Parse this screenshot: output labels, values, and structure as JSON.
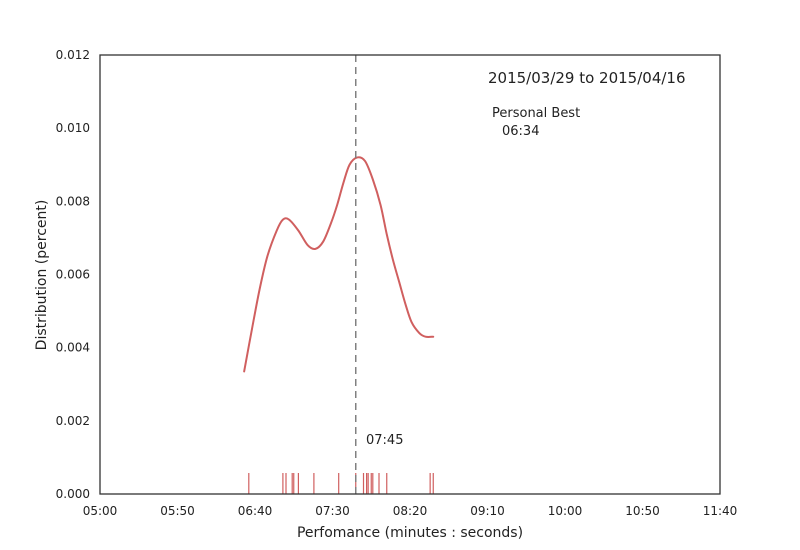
{
  "chart_data": {
    "type": "line",
    "title": "",
    "xlabel": "Perfomance (minutes : seconds)",
    "ylabel": "Distribution (percent)",
    "xlim": [
      300,
      700
    ],
    "ylim": [
      0,
      0.012
    ],
    "grid": false,
    "x_ticks": [
      {
        "value": 300,
        "label": "05:00"
      },
      {
        "value": 350,
        "label": "05:50"
      },
      {
        "value": 400,
        "label": "06:40"
      },
      {
        "value": 450,
        "label": "07:30"
      },
      {
        "value": 500,
        "label": "08:20"
      },
      {
        "value": 550,
        "label": "09:10"
      },
      {
        "value": 600,
        "label": "10:00"
      },
      {
        "value": 650,
        "label": "10:50"
      },
      {
        "value": 700,
        "label": "11:40"
      }
    ],
    "y_ticks": [
      {
        "value": 0,
        "label": "0.000"
      },
      {
        "value": 0.002,
        "label": "0.002"
      },
      {
        "value": 0.004,
        "label": "0.004"
      },
      {
        "value": 0.006,
        "label": "0.006"
      },
      {
        "value": 0.008,
        "label": "0.008"
      },
      {
        "value": 0.01,
        "label": "0.010"
      },
      {
        "value": 0.012,
        "label": "0.012"
      }
    ],
    "series": [
      {
        "color": "#d05f5f",
        "x": [
          393,
          398,
          403,
          408,
          414,
          418,
          422,
          428,
          434,
          439,
          444,
          449,
          453,
          457,
          461,
          466,
          471,
          476,
          481,
          485,
          489,
          493,
          497,
          501,
          506,
          510,
          515
        ],
        "y": [
          0.00335,
          0.0045,
          0.0056,
          0.0065,
          0.0072,
          0.0075,
          0.0075,
          0.0072,
          0.0068,
          0.0067,
          0.0069,
          0.0074,
          0.0079,
          0.0085,
          0.009,
          0.0092,
          0.0091,
          0.0086,
          0.0079,
          0.0071,
          0.0064,
          0.0058,
          0.0052,
          0.0047,
          0.0044,
          0.0043,
          0.0043
        ]
      }
    ],
    "rug": {
      "color": "#d05f5f",
      "values": [
        396,
        418,
        420,
        424,
        425,
        428,
        438,
        454,
        465,
        470,
        472,
        473,
        475,
        476,
        480,
        485,
        513,
        515
      ]
    },
    "vline": {
      "x": 465,
      "color": "#808080"
    },
    "annotations": {
      "date_range": "2015/03/29 to 2015/04/16",
      "personal_best_label": "Personal Best",
      "personal_best_value": "06:34",
      "vline_label": "07:45"
    }
  }
}
